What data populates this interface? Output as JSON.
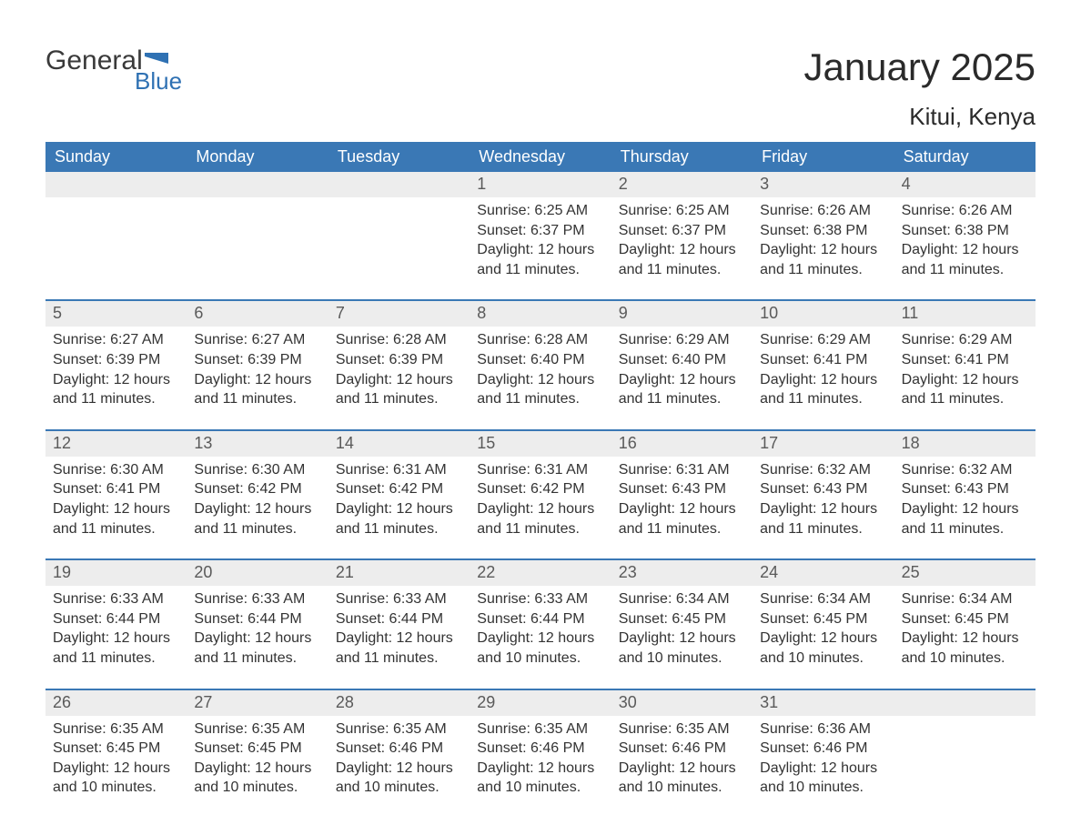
{
  "brand": {
    "word1": "General",
    "word2": "Blue",
    "flag_color": "#2f71b3"
  },
  "title": "January 2025",
  "location": "Kitui, Kenya",
  "colors": {
    "header_bg": "#3a78b5",
    "header_text": "#ffffff",
    "band_bg": "#ededed",
    "row_divider": "#3a78b5",
    "body_text": "#333333"
  },
  "font": {
    "title_size_pt": 32,
    "subtitle_size_pt": 20,
    "dayhead_size_pt": 14,
    "daynum_size_pt": 14,
    "detail_size_pt": 12
  },
  "day_headers": [
    "Sunday",
    "Monday",
    "Tuesday",
    "Wednesday",
    "Thursday",
    "Friday",
    "Saturday"
  ],
  "weeks": [
    [
      {
        "n": "",
        "sr": "",
        "ss": "",
        "dl": ""
      },
      {
        "n": "",
        "sr": "",
        "ss": "",
        "dl": ""
      },
      {
        "n": "",
        "sr": "",
        "ss": "",
        "dl": ""
      },
      {
        "n": "1",
        "sr": "6:25 AM",
        "ss": "6:37 PM",
        "dl": "12 hours and 11 minutes."
      },
      {
        "n": "2",
        "sr": "6:25 AM",
        "ss": "6:37 PM",
        "dl": "12 hours and 11 minutes."
      },
      {
        "n": "3",
        "sr": "6:26 AM",
        "ss": "6:38 PM",
        "dl": "12 hours and 11 minutes."
      },
      {
        "n": "4",
        "sr": "6:26 AM",
        "ss": "6:38 PM",
        "dl": "12 hours and 11 minutes."
      }
    ],
    [
      {
        "n": "5",
        "sr": "6:27 AM",
        "ss": "6:39 PM",
        "dl": "12 hours and 11 minutes."
      },
      {
        "n": "6",
        "sr": "6:27 AM",
        "ss": "6:39 PM",
        "dl": "12 hours and 11 minutes."
      },
      {
        "n": "7",
        "sr": "6:28 AM",
        "ss": "6:39 PM",
        "dl": "12 hours and 11 minutes."
      },
      {
        "n": "8",
        "sr": "6:28 AM",
        "ss": "6:40 PM",
        "dl": "12 hours and 11 minutes."
      },
      {
        "n": "9",
        "sr": "6:29 AM",
        "ss": "6:40 PM",
        "dl": "12 hours and 11 minutes."
      },
      {
        "n": "10",
        "sr": "6:29 AM",
        "ss": "6:41 PM",
        "dl": "12 hours and 11 minutes."
      },
      {
        "n": "11",
        "sr": "6:29 AM",
        "ss": "6:41 PM",
        "dl": "12 hours and 11 minutes."
      }
    ],
    [
      {
        "n": "12",
        "sr": "6:30 AM",
        "ss": "6:41 PM",
        "dl": "12 hours and 11 minutes."
      },
      {
        "n": "13",
        "sr": "6:30 AM",
        "ss": "6:42 PM",
        "dl": "12 hours and 11 minutes."
      },
      {
        "n": "14",
        "sr": "6:31 AM",
        "ss": "6:42 PM",
        "dl": "12 hours and 11 minutes."
      },
      {
        "n": "15",
        "sr": "6:31 AM",
        "ss": "6:42 PM",
        "dl": "12 hours and 11 minutes."
      },
      {
        "n": "16",
        "sr": "6:31 AM",
        "ss": "6:43 PM",
        "dl": "12 hours and 11 minutes."
      },
      {
        "n": "17",
        "sr": "6:32 AM",
        "ss": "6:43 PM",
        "dl": "12 hours and 11 minutes."
      },
      {
        "n": "18",
        "sr": "6:32 AM",
        "ss": "6:43 PM",
        "dl": "12 hours and 11 minutes."
      }
    ],
    [
      {
        "n": "19",
        "sr": "6:33 AM",
        "ss": "6:44 PM",
        "dl": "12 hours and 11 minutes."
      },
      {
        "n": "20",
        "sr": "6:33 AM",
        "ss": "6:44 PM",
        "dl": "12 hours and 11 minutes."
      },
      {
        "n": "21",
        "sr": "6:33 AM",
        "ss": "6:44 PM",
        "dl": "12 hours and 11 minutes."
      },
      {
        "n": "22",
        "sr": "6:33 AM",
        "ss": "6:44 PM",
        "dl": "12 hours and 10 minutes."
      },
      {
        "n": "23",
        "sr": "6:34 AM",
        "ss": "6:45 PM",
        "dl": "12 hours and 10 minutes."
      },
      {
        "n": "24",
        "sr": "6:34 AM",
        "ss": "6:45 PM",
        "dl": "12 hours and 10 minutes."
      },
      {
        "n": "25",
        "sr": "6:34 AM",
        "ss": "6:45 PM",
        "dl": "12 hours and 10 minutes."
      }
    ],
    [
      {
        "n": "26",
        "sr": "6:35 AM",
        "ss": "6:45 PM",
        "dl": "12 hours and 10 minutes."
      },
      {
        "n": "27",
        "sr": "6:35 AM",
        "ss": "6:45 PM",
        "dl": "12 hours and 10 minutes."
      },
      {
        "n": "28",
        "sr": "6:35 AM",
        "ss": "6:46 PM",
        "dl": "12 hours and 10 minutes."
      },
      {
        "n": "29",
        "sr": "6:35 AM",
        "ss": "6:46 PM",
        "dl": "12 hours and 10 minutes."
      },
      {
        "n": "30",
        "sr": "6:35 AM",
        "ss": "6:46 PM",
        "dl": "12 hours and 10 minutes."
      },
      {
        "n": "31",
        "sr": "6:36 AM",
        "ss": "6:46 PM",
        "dl": "12 hours and 10 minutes."
      },
      {
        "n": "",
        "sr": "",
        "ss": "",
        "dl": ""
      }
    ]
  ],
  "labels": {
    "sunrise": "Sunrise:",
    "sunset": "Sunset:",
    "daylight": "Daylight:"
  }
}
